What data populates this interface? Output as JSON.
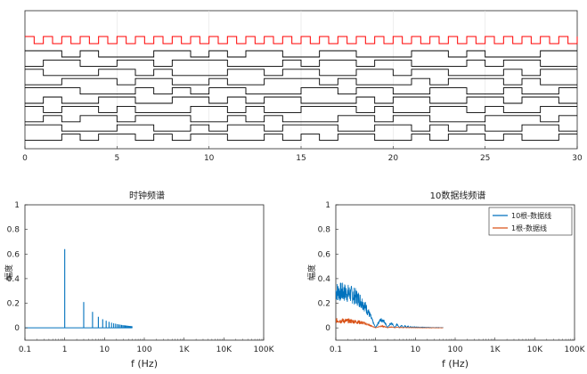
{
  "chart_data": [
    {
      "type": "line",
      "name": "timing-diagram",
      "title": "",
      "xlabel": "",
      "ylabel": "",
      "xlim": [
        0,
        30
      ],
      "xticks": [
        0,
        5,
        10,
        15,
        20,
        25,
        30
      ],
      "clock": {
        "name": "clock",
        "period": 1,
        "color": "#ff0000"
      },
      "series": [
        {
          "name": "data-0",
          "color": "#000000",
          "bits": "1101000110101100110001101000111"
        },
        {
          "name": "data-1",
          "color": "#000000",
          "bits": "0110011011100010110110001011001"
        },
        {
          "name": "data-2",
          "color": "#000000",
          "bits": "1000110100011011001101100010110"
        },
        {
          "name": "data-3",
          "color": "#000000",
          "bits": "0011101100100111010001011101001"
        },
        {
          "name": "data-4",
          "color": "#000000",
          "bits": "1110001010110001101100110010011"
        },
        {
          "name": "data-5",
          "color": "#000000",
          "bits": "0100110011010110001011001101100"
        },
        {
          "name": "data-6",
          "color": "#000000",
          "bits": "1011010001101001110100110100110"
        },
        {
          "name": "data-7",
          "color": "#000000",
          "bits": "0101101110010100011011000111010"
        },
        {
          "name": "data-8",
          "color": "#000000",
          "bits": "1100011001011011100110101001101"
        },
        {
          "name": "data-9",
          "color": "#000000",
          "bits": "0010110101100101011001011010011"
        }
      ]
    },
    {
      "type": "line",
      "name": "clock-spectrum",
      "title": "时钟频谱",
      "xlabel": "f (Hz)",
      "ylabel": "幅度",
      "xscale": "log",
      "xlim": [
        0.1,
        100000
      ],
      "ylim": [
        -0.1,
        1
      ],
      "xticklabels": [
        "0.1",
        "1",
        "10",
        "100",
        "1K",
        "10K",
        "100K"
      ],
      "yticklabels": [
        "0",
        "0.2",
        "0.4",
        "0.6",
        "0.8",
        "1"
      ],
      "color": "#0072bd",
      "harmonics": [
        {
          "f": 1,
          "a": 0.64
        },
        {
          "f": 3,
          "a": 0.21
        },
        {
          "f": 5,
          "a": 0.13
        },
        {
          "f": 7,
          "a": 0.09
        },
        {
          "f": 9,
          "a": 0.07
        },
        {
          "f": 11,
          "a": 0.058
        },
        {
          "f": 13,
          "a": 0.049
        },
        {
          "f": 15,
          "a": 0.042
        },
        {
          "f": 17,
          "a": 0.037
        },
        {
          "f": 19,
          "a": 0.034
        },
        {
          "f": 21,
          "a": 0.03
        },
        {
          "f": 23,
          "a": 0.028
        },
        {
          "f": 25,
          "a": 0.026
        },
        {
          "f": 27,
          "a": 0.024
        },
        {
          "f": 29,
          "a": 0.022
        },
        {
          "f": 31,
          "a": 0.021
        },
        {
          "f": 33,
          "a": 0.02
        },
        {
          "f": 35,
          "a": 0.019
        },
        {
          "f": 37,
          "a": 0.018
        },
        {
          "f": 39,
          "a": 0.017
        },
        {
          "f": 41,
          "a": 0.016
        },
        {
          "f": 43,
          "a": 0.015
        },
        {
          "f": 45,
          "a": 0.014
        },
        {
          "f": 47,
          "a": 0.014
        },
        {
          "f": 49,
          "a": 0.013
        }
      ],
      "fmax": 50
    },
    {
      "type": "line",
      "name": "data-line-spectrum",
      "title": "10数据线频谱",
      "xlabel": "f (Hz)",
      "ylabel": "幅度",
      "xscale": "log",
      "xlim": [
        0.1,
        100000
      ],
      "ylim": [
        -0.1,
        1
      ],
      "xticklabels": [
        "0.1",
        "1",
        "10",
        "100",
        "1K",
        "10K",
        "100K"
      ],
      "yticklabels": [
        "0",
        "0.2",
        "0.4",
        "0.6",
        "0.8",
        "1"
      ],
      "legend_position": "top-right",
      "series": [
        {
          "name": "10根-数据线",
          "color": "#0072bd",
          "peak": 0.3,
          "first_null": 1,
          "fmax": 50
        },
        {
          "name": "1根-数据线",
          "color": "#d95319",
          "peak": 0.06,
          "first_null": 1,
          "fmax": 50
        }
      ]
    }
  ]
}
